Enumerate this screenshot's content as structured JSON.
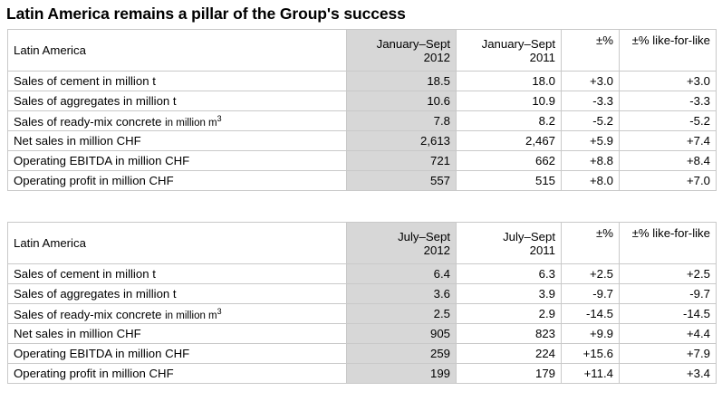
{
  "title": "Latin America remains a pillar of the Group's success",
  "tables": [
    {
      "header": {
        "label": "Latin America",
        "col1_line1": "January–Sept",
        "col1_line2": "2012",
        "col2_line1": "January–Sept",
        "col2_line2": "2011",
        "col3": "±%",
        "col4": "±% like-for-like"
      },
      "rows": [
        {
          "label": "Sales of cement in million t",
          "v2012": "18.5",
          "v2011": "18.0",
          "pct": "+3.0",
          "lfl": "+3.0"
        },
        {
          "label": "Sales of aggregates in million t",
          "v2012": "10.6",
          "v2011": "10.9",
          "pct": "-3.3",
          "lfl": "-3.3"
        },
        {
          "label": "Sales of ready-mix concrete",
          "label_unit": "in million m",
          "label_sup": "3",
          "v2012": "7.8",
          "v2011": "8.2",
          "pct": "-5.2",
          "lfl": "-5.2"
        },
        {
          "label": "Net sales in million CHF",
          "v2012": "2,613",
          "v2011": "2,467",
          "pct": "+5.9",
          "lfl": "+7.4"
        },
        {
          "label": "Operating EBITDA in million CHF",
          "v2012": "721",
          "v2011": "662",
          "pct": "+8.8",
          "lfl": "+8.4"
        },
        {
          "label": "Operating profit in million CHF",
          "v2012": "557",
          "v2011": "515",
          "pct": "+8.0",
          "lfl": "+7.0"
        }
      ]
    },
    {
      "header": {
        "label": "Latin America",
        "col1_line1": "July–Sept",
        "col1_line2": "2012",
        "col2_line1": "July–Sept",
        "col2_line2": "2011",
        "col3": "±%",
        "col4": "±% like-for-like"
      },
      "rows": [
        {
          "label": "Sales of cement in million t",
          "v2012": "6.4",
          "v2011": "6.3",
          "pct": "+2.5",
          "lfl": "+2.5"
        },
        {
          "label": "Sales of aggregates in million t",
          "v2012": "3.6",
          "v2011": "3.9",
          "pct": "-9.7",
          "lfl": "-9.7"
        },
        {
          "label": "Sales of ready-mix concrete",
          "label_unit": "in million m",
          "label_sup": "3",
          "v2012": "2.5",
          "v2011": "2.9",
          "pct": "-14.5",
          "lfl": "-14.5"
        },
        {
          "label": "Net sales in million CHF",
          "v2012": "905",
          "v2011": "823",
          "pct": "+9.9",
          "lfl": "+4.4"
        },
        {
          "label": "Operating EBITDA in million CHF",
          "v2012": "259",
          "v2011": "224",
          "pct": "+15.6",
          "lfl": "+7.9"
        },
        {
          "label": "Operating profit in million CHF",
          "v2012": "199",
          "v2011": "179",
          "pct": "+11.4",
          "lfl": "+3.4"
        }
      ]
    }
  ],
  "colors": {
    "highlight_column": "#d7d7d7",
    "grid": "#c9c9c9"
  }
}
